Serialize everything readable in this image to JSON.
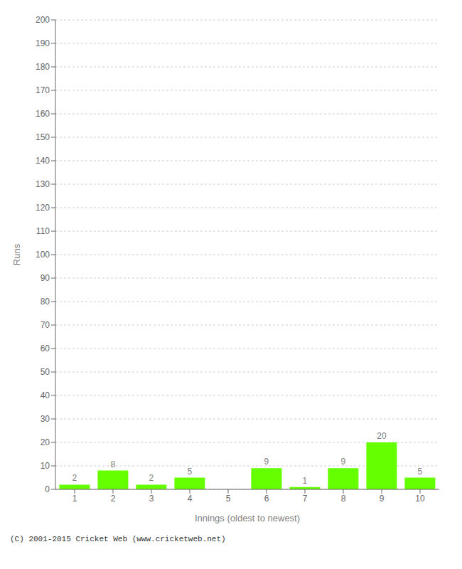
{
  "chart_data": {
    "type": "bar",
    "xlabel": "Innings (oldest to newest)",
    "ylabel": "Runs",
    "categories": [
      "1",
      "2",
      "3",
      "4",
      "5",
      "6",
      "7",
      "8",
      "9",
      "10"
    ],
    "values": [
      2,
      8,
      2,
      5,
      0,
      9,
      1,
      9,
      20,
      5
    ],
    "color": "#66ff00",
    "ylim": [
      0,
      200
    ],
    "yticks": [
      0,
      10,
      20,
      30,
      40,
      50,
      60,
      70,
      80,
      90,
      100,
      110,
      120,
      130,
      140,
      150,
      160,
      170,
      180,
      190,
      200
    ],
    "grid": true,
    "data_labels": true,
    "annotations": [
      "(C) 2001-2015 Cricket Web (www.cricketweb.net)"
    ]
  }
}
